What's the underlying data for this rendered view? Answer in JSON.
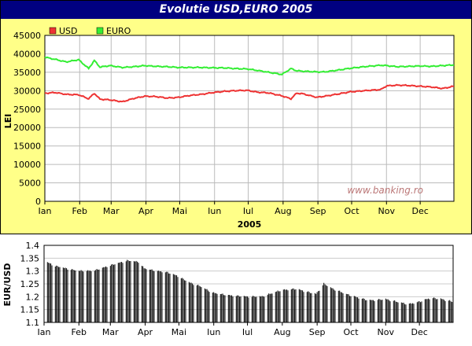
{
  "title": "Evolutie USD,EURO 2005",
  "watermark": "www.banking.ro",
  "colors": {
    "title_bg": "#000080",
    "panel_bg": "#ffff88",
    "usd": "#ee3333",
    "euro": "#33ee33",
    "bars": "#000000"
  },
  "chart_data": [
    {
      "type": "line",
      "title": "Evolutie USD,EURO 2005",
      "xlabel": "2005",
      "ylabel": "LEI",
      "ylim": [
        0,
        45000
      ],
      "yticks": [
        "0",
        "5000",
        "10000",
        "15000",
        "20000",
        "25000",
        "30000",
        "35000",
        "40000",
        "45000"
      ],
      "month_labels": [
        "Ian",
        "Feb",
        "Mar",
        "Apr",
        "Mai",
        "Iun",
        "Iul",
        "Aug",
        "Sep",
        "Oct",
        "Nov",
        "Dec"
      ],
      "grid": true,
      "legend": "top-left",
      "x_days": [
        1,
        10,
        20,
        31,
        40,
        45,
        50,
        59,
        70,
        80,
        90,
        100,
        110,
        120,
        130,
        140,
        151,
        160,
        170,
        181,
        190,
        200,
        212,
        220,
        225,
        230,
        243,
        250,
        260,
        273,
        285,
        300,
        305,
        315,
        325,
        335,
        345,
        355,
        365
      ],
      "series": [
        {
          "name": "USD",
          "values": [
            29300,
            29500,
            29000,
            28900,
            27800,
            29300,
            27700,
            27500,
            27000,
            27900,
            28500,
            28400,
            28000,
            28200,
            28700,
            29000,
            29500,
            29800,
            30000,
            30100,
            29600,
            29400,
            28600,
            27800,
            29300,
            29200,
            28200,
            28500,
            29000,
            29700,
            30000,
            30300,
            31300,
            31500,
            31400,
            31200,
            31000,
            30600,
            31200
          ]
        },
        {
          "name": "EURO",
          "values": [
            39100,
            38500,
            37800,
            38400,
            36000,
            38200,
            36400,
            36800,
            36300,
            36500,
            36800,
            36600,
            36500,
            36300,
            36300,
            36300,
            36200,
            36200,
            36000,
            35900,
            35500,
            35000,
            34400,
            36000,
            35400,
            35300,
            35100,
            35100,
            35500,
            36100,
            36500,
            36900,
            36800,
            36500,
            36600,
            36700,
            36600,
            36800,
            37000
          ]
        }
      ]
    },
    {
      "type": "bar",
      "ylabel": "EUR/USD",
      "ylim": [
        1.1,
        1.4
      ],
      "yticks": [
        "1.1",
        "1.15",
        "1.2",
        "1.25",
        "1.3",
        "1.35",
        "1.4"
      ],
      "month_labels": [
        "Ian",
        "Feb",
        "Mar",
        "Apr",
        "Mai",
        "Iun",
        "Iul",
        "Aug",
        "Sep",
        "Oct",
        "Nov",
        "Dec"
      ],
      "x_days": [
        1,
        10,
        20,
        31,
        45,
        59,
        75,
        85,
        90,
        100,
        110,
        120,
        130,
        140,
        151,
        165,
        181,
        195,
        212,
        225,
        243,
        250,
        258,
        273,
        290,
        305,
        315,
        325,
        335,
        345,
        355,
        365
      ],
      "values": [
        1.34,
        1.32,
        1.31,
        1.3,
        1.3,
        1.32,
        1.34,
        1.335,
        1.31,
        1.3,
        1.295,
        1.28,
        1.255,
        1.24,
        1.215,
        1.205,
        1.2,
        1.2,
        1.225,
        1.23,
        1.21,
        1.25,
        1.23,
        1.205,
        1.185,
        1.19,
        1.18,
        1.17,
        1.18,
        1.195,
        1.19,
        1.18
      ]
    }
  ]
}
